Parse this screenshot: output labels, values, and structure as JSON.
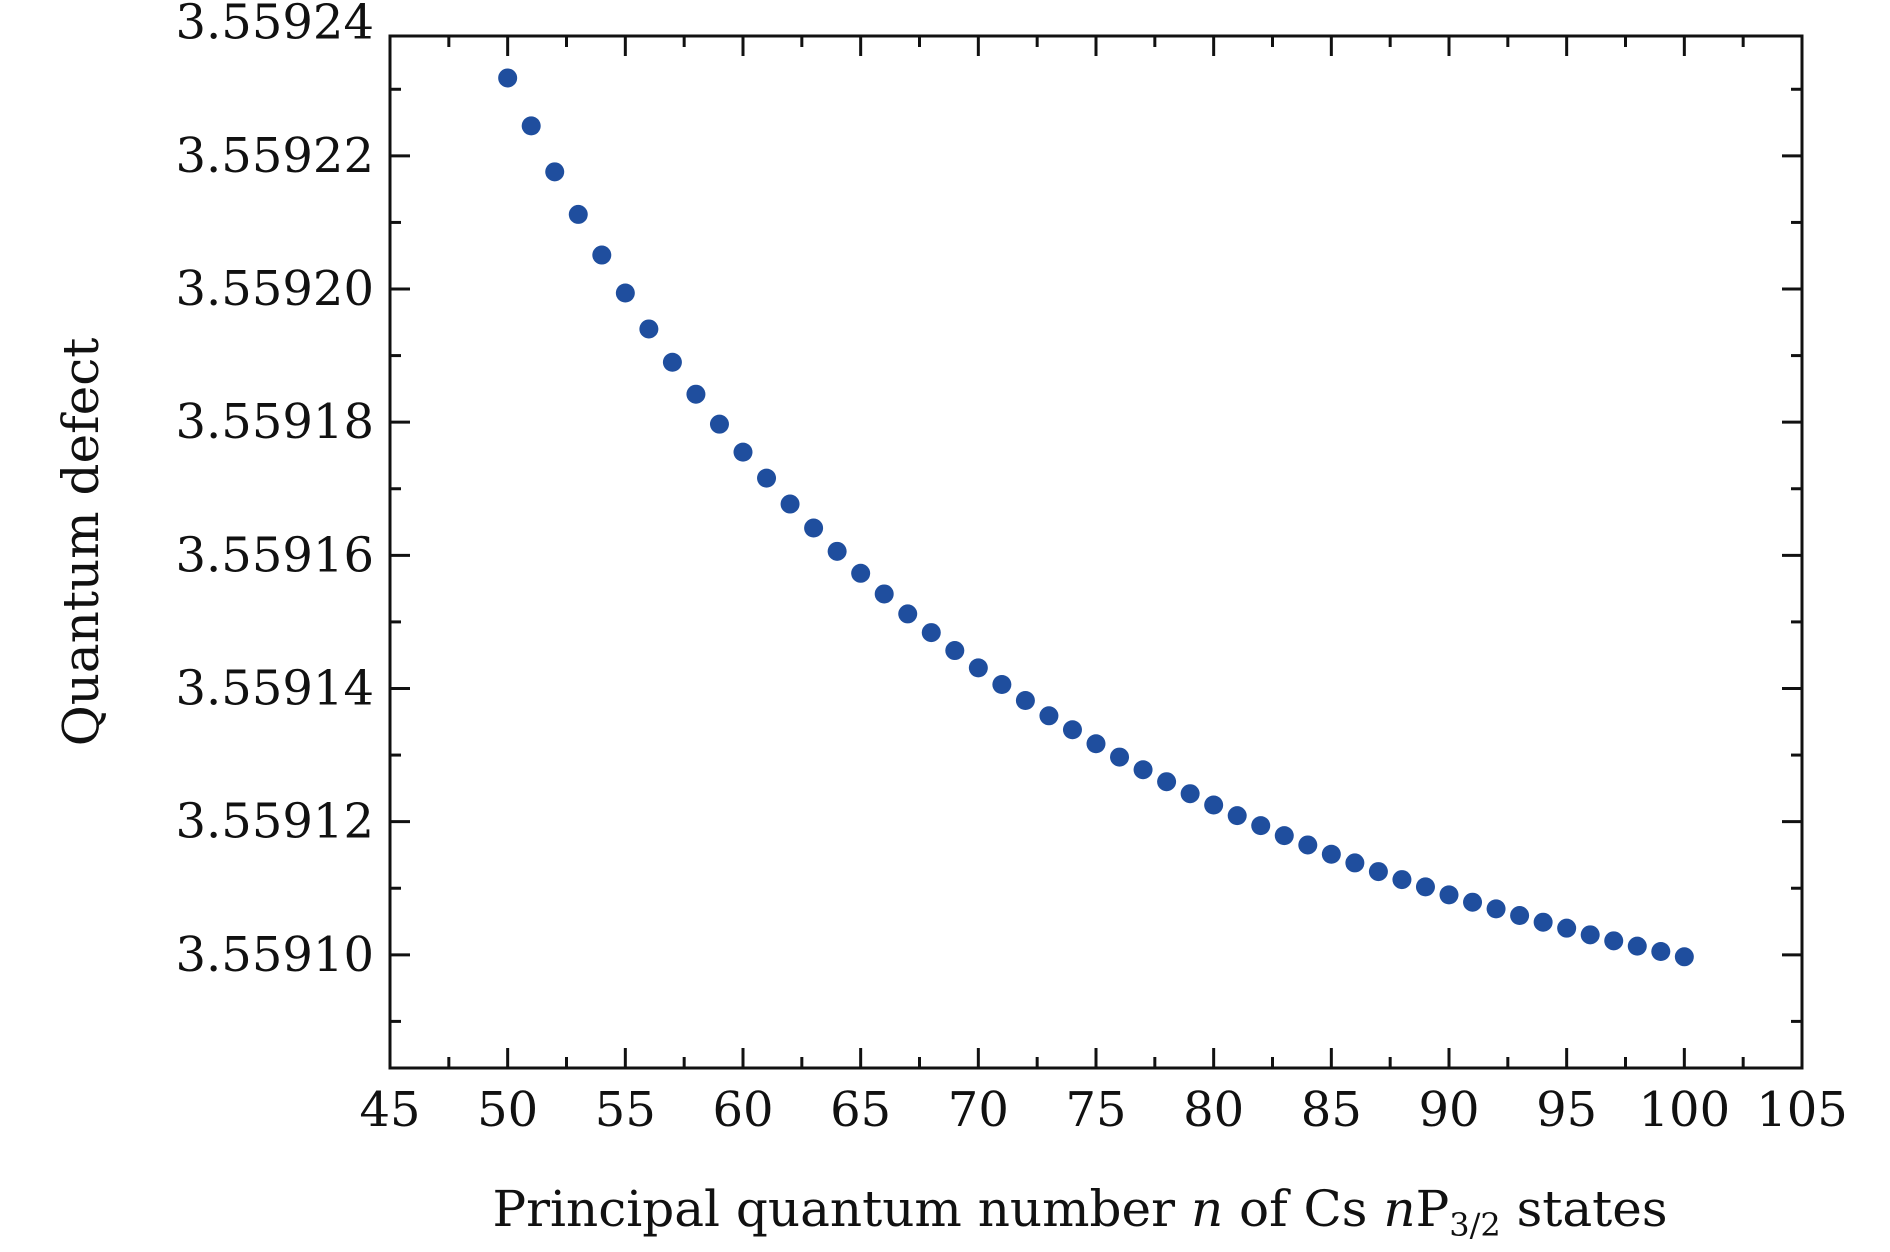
{
  "chart_data": {
    "type": "scatter",
    "title": "",
    "xlabel": {
      "prefix": "Principal quantum number ",
      "var1": "n",
      "mid": " of Cs ",
      "var2": "n",
      "P": "P",
      "sub": "3/2",
      "suffix": " states"
    },
    "ylabel": "Quantum defect",
    "xlim": [
      45,
      105
    ],
    "ylim": [
      3.559083,
      3.559238
    ],
    "x_ticks": [
      "45",
      "50",
      "55",
      "60",
      "65",
      "70",
      "75",
      "80",
      "85",
      "90",
      "95",
      "100",
      "105"
    ],
    "y_ticks": [
      "3.55910",
      "3.55912",
      "3.55914",
      "3.55916",
      "3.55918",
      "3.55920",
      "3.55922",
      "3.55924"
    ],
    "grid": false,
    "marker_color": "#1f4e9e",
    "series": [
      {
        "x": [
          50,
          51,
          52,
          53,
          54,
          55,
          56,
          57,
          58,
          59,
          60,
          61,
          62,
          63,
          64,
          65,
          66,
          67,
          68,
          69,
          70,
          71,
          72,
          73,
          74,
          75,
          76,
          77,
          78,
          79,
          80,
          81,
          82,
          83,
          84,
          85,
          86,
          87,
          88,
          89,
          90,
          91,
          92,
          93,
          94,
          95,
          96,
          97,
          98,
          99,
          100
        ],
        "y": [
          3.5592317,
          3.5592245,
          3.5592176,
          3.5592112,
          3.5592051,
          3.5591994,
          3.559194,
          3.559189,
          3.5591842,
          3.5591797,
          3.5591755,
          3.5591716,
          3.5591677,
          3.5591641,
          3.5591606,
          3.5591573,
          3.5591542,
          3.5591512,
          3.5591484,
          3.5591457,
          3.5591431,
          3.5591406,
          3.5591382,
          3.5591359,
          3.5591338,
          3.5591317,
          3.5591297,
          3.5591278,
          3.559126,
          3.5591242,
          3.5591225,
          3.5591209,
          3.5591194,
          3.5591179,
          3.5591165,
          3.5591151,
          3.5591138,
          3.5591125,
          3.5591113,
          3.5591102,
          3.559109,
          3.5591079,
          3.5591069,
          3.5591059,
          3.5591049,
          3.559104,
          3.559103,
          3.5591021,
          3.5591013,
          3.5591005,
          3.5590997
        ]
      }
    ]
  }
}
